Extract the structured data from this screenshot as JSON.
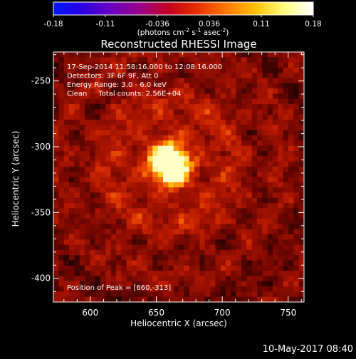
{
  "colorbar": {
    "ticks": [
      "-0.18",
      "-0.11",
      "-0.036",
      "0.036",
      "0.11",
      "0.18"
    ],
    "units_main": "(photons cm",
    "units_exp1": "-2",
    "units_mid": " s",
    "units_exp2": "-1",
    "units_tail": " asec",
    "units_exp3": "-2",
    "units_close": ")",
    "range": [
      -0.18,
      0.18
    ],
    "colors": [
      "#0018ff",
      "#2a00e0",
      "#6a00c0",
      "#9a0088",
      "#c40020",
      "#e83000",
      "#ff7a00",
      "#ffc000",
      "#ffff80",
      "#ffffff"
    ]
  },
  "chart_data": {
    "type": "heatmap",
    "title": "Reconstructed RHESSI Image",
    "xlabel": "Heliocentric X (arcsec)",
    "ylabel": "Heliocentric Y (arcsec)",
    "xlim": [
      572,
      762
    ],
    "ylim": [
      -418,
      -228
    ],
    "xticks": [
      600,
      650,
      700,
      750
    ],
    "yticks": [
      -250,
      -300,
      -350,
      -400
    ],
    "annotations": [
      "17-Sep-2014 11:58:16.000 to 12:08:16.000",
      "Detectors: 3F 6F 9F, Att 0",
      "Energy Range: 3.0 - 6.0 keV",
      "Clean     Total counts: 2.56E+04"
    ],
    "peak_label": "Position of Peak = [660,-313]",
    "peak": {
      "x": 660,
      "y": -313
    },
    "source": {
      "x": 660,
      "y": -313,
      "sigma_arcsec": 9,
      "peak_value": 0.18
    },
    "background_level": 0.05
  },
  "footer": {
    "timestamp": "10-May-2017 08:40"
  }
}
